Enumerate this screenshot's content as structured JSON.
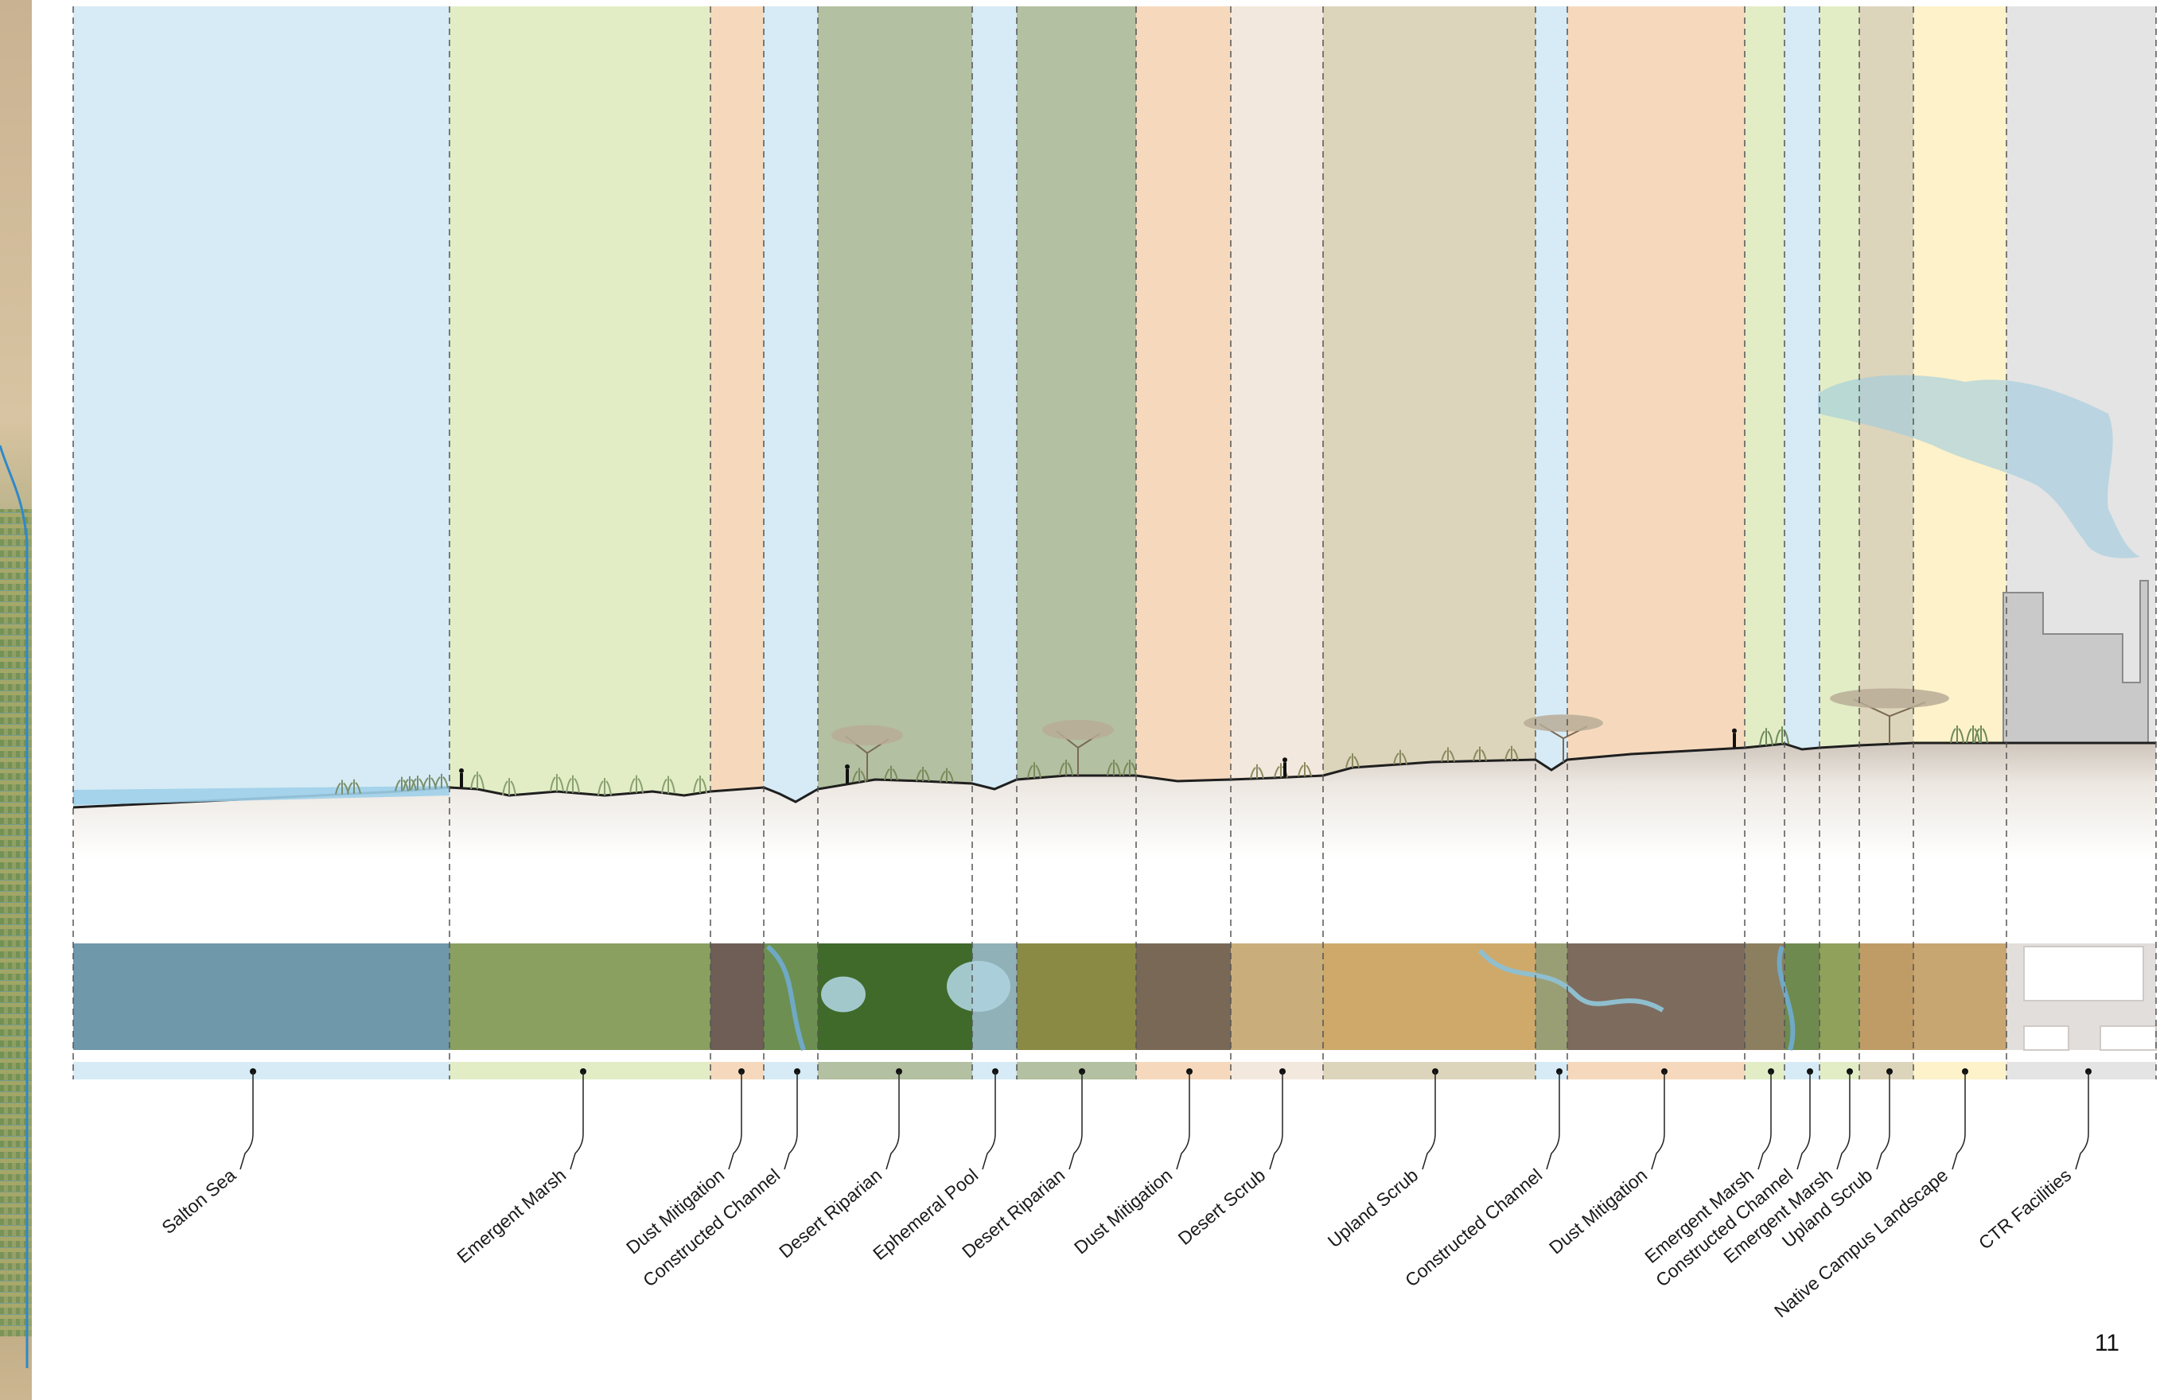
{
  "page_number": "11",
  "zones": [
    {
      "label": "Salton Sea",
      "color": "#d6ebf5",
      "photo": "#6f98aa"
    },
    {
      "label": "Emergent Marsh",
      "color": "#e2edc6",
      "photo": "#8aa060"
    },
    {
      "label": "Dust Mitigation",
      "color": "#f6d9bd",
      "photo": "#6e5e55"
    },
    {
      "label": "Constructed Channel",
      "color": "#d6ebf5",
      "photo": "#6d8f52"
    },
    {
      "label": "Desert Riparian",
      "color": "#b3c0a1",
      "photo": "#3f6a2a"
    },
    {
      "label": "Ephemeral Pool",
      "color": "#d6ebf5",
      "photo": "#8fb1b7"
    },
    {
      "label": "Desert Riparian",
      "color": "#b3c0a1",
      "photo": "#8a8a45"
    },
    {
      "label": "Dust Mitigation",
      "color": "#f6d9bd",
      "photo": "#7a6856"
    },
    {
      "label": "Desert Scrub",
      "color": "#f3e8dd",
      "photo": "#c9ad7a"
    },
    {
      "label": "Upland Scrub",
      "color": "#ddd5bb",
      "photo": "#cfa96a"
    },
    {
      "label": "Constructed Channel",
      "color": "#d6ebf5",
      "photo": "#9a9e74"
    },
    {
      "label": "Dust Mitigation",
      "color": "#f6d9bd",
      "photo": "#7d6b5e"
    },
    {
      "label": "Emergent Marsh",
      "color": "#e2edc6",
      "photo": "#8c7f60"
    },
    {
      "label": "Constructed Channel",
      "color": "#d6ebf5",
      "photo": "#6e8a4e"
    },
    {
      "label": "Emergent Marsh",
      "color": "#e2edc6",
      "photo": "#8fa15a"
    },
    {
      "label": "Upland Scrub",
      "color": "#ddd5bb",
      "photo": "#bf9c65"
    },
    {
      "label": "Native Campus Landscape",
      "color": "#fdf2ca",
      "photo": "#c7a672"
    },
    {
      "label": "CTR Facilities",
      "color": "#e4e4e4",
      "photo": "#e2dedb"
    }
  ]
}
